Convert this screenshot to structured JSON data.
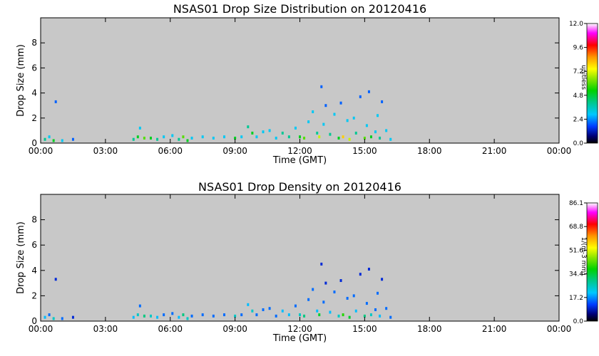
{
  "chart_data": [
    {
      "type": "heatmap",
      "title": "NSAS01 Drop Size Distribution  on 20120416",
      "xlabel": "Time (GMT)",
      "ylabel": "Drop Size (mm)",
      "xticks": [
        "00:00",
        "03:00",
        "06:00",
        "09:00",
        "12:00",
        "15:00",
        "18:00",
        "21:00",
        "00:00"
      ],
      "xlim_hours": [
        0,
        24
      ],
      "yticks": [
        "0",
        "2",
        "4",
        "6",
        "8"
      ],
      "ylim": [
        0,
        10
      ],
      "background_color": "#c8c8c8",
      "colorbar": {
        "label": "unitless",
        "ticks": [
          "0.0",
          "2.4",
          "4.8",
          "7.2",
          "9.6",
          "12.0"
        ],
        "range": [
          0,
          12.0
        ]
      },
      "points": [
        [
          0.2,
          0.3,
          4
        ],
        [
          0.4,
          0.5,
          3
        ],
        [
          0.6,
          0.2,
          5
        ],
        [
          0.7,
          3.3,
          2
        ],
        [
          1.0,
          0.2,
          3
        ],
        [
          1.5,
          0.3,
          2
        ],
        [
          4.3,
          0.3,
          4
        ],
        [
          4.5,
          0.5,
          5
        ],
        [
          4.6,
          1.2,
          3
        ],
        [
          4.8,
          0.4,
          6
        ],
        [
          5.1,
          0.4,
          5
        ],
        [
          5.4,
          0.3,
          4
        ],
        [
          5.7,
          0.5,
          3
        ],
        [
          6.1,
          0.6,
          3
        ],
        [
          6.4,
          0.3,
          4
        ],
        [
          6.6,
          0.5,
          6
        ],
        [
          6.8,
          0.2,
          5
        ],
        [
          7.0,
          0.4,
          3
        ],
        [
          7.5,
          0.5,
          3
        ],
        [
          8.0,
          0.4,
          3
        ],
        [
          8.5,
          0.5,
          3
        ],
        [
          9.0,
          0.4,
          5
        ],
        [
          9.3,
          0.5,
          3
        ],
        [
          9.6,
          1.3,
          4
        ],
        [
          9.8,
          0.8,
          5
        ],
        [
          10.0,
          0.5,
          3
        ],
        [
          10.3,
          0.9,
          3
        ],
        [
          10.6,
          1.0,
          3
        ],
        [
          10.9,
          0.4,
          3
        ],
        [
          11.2,
          0.8,
          4
        ],
        [
          11.5,
          0.5,
          4
        ],
        [
          11.8,
          1.2,
          3
        ],
        [
          12.0,
          0.5,
          5
        ],
        [
          12.2,
          0.4,
          6
        ],
        [
          12.4,
          1.7,
          3
        ],
        [
          12.6,
          2.5,
          3
        ],
        [
          12.8,
          0.8,
          4
        ],
        [
          12.9,
          0.5,
          7
        ],
        [
          13.0,
          4.5,
          2
        ],
        [
          13.1,
          1.5,
          3
        ],
        [
          13.2,
          3.0,
          2
        ],
        [
          13.4,
          0.7,
          4
        ],
        [
          13.6,
          2.3,
          3
        ],
        [
          13.8,
          0.4,
          5
        ],
        [
          13.9,
          3.2,
          2
        ],
        [
          14.0,
          0.5,
          8
        ],
        [
          14.2,
          1.8,
          3
        ],
        [
          14.3,
          0.3,
          7
        ],
        [
          14.5,
          2.0,
          3
        ],
        [
          14.6,
          0.8,
          4
        ],
        [
          14.8,
          3.7,
          2
        ],
        [
          15.0,
          0.4,
          6
        ],
        [
          15.1,
          1.4,
          3
        ],
        [
          15.2,
          4.1,
          2
        ],
        [
          15.3,
          0.5,
          5
        ],
        [
          15.5,
          0.9,
          3
        ],
        [
          15.6,
          2.2,
          3
        ],
        [
          15.7,
          0.4,
          4
        ],
        [
          15.8,
          3.3,
          2
        ],
        [
          16.0,
          1.0,
          3
        ],
        [
          16.2,
          0.3,
          3
        ]
      ]
    },
    {
      "type": "heatmap",
      "title": "NSAS01 Drop Density  on 20120416",
      "xlabel": "Time (GMT)",
      "ylabel": "Drop Size (mm)",
      "xticks": [
        "00:00",
        "03:00",
        "06:00",
        "09:00",
        "12:00",
        "15:00",
        "18:00",
        "21:00",
        "00:00"
      ],
      "xlim_hours": [
        0,
        24
      ],
      "yticks": [
        "0",
        "2",
        "4",
        "6",
        "8"
      ],
      "ylim": [
        0,
        10
      ],
      "background_color": "#c8c8c8",
      "colorbar": {
        "label": "1/(m-3 mm)",
        "ticks": [
          "0.0",
          "17.2",
          "34.4",
          "51.6",
          "68.8",
          "86.1"
        ],
        "range": [
          0,
          86.1
        ]
      },
      "points": [
        [
          0.2,
          0.3,
          20
        ],
        [
          0.4,
          0.5,
          15
        ],
        [
          0.6,
          0.2,
          25
        ],
        [
          0.7,
          3.3,
          10
        ],
        [
          1.0,
          0.2,
          15
        ],
        [
          1.5,
          0.3,
          10
        ],
        [
          4.3,
          0.3,
          20
        ],
        [
          4.5,
          0.5,
          25
        ],
        [
          4.6,
          1.2,
          15
        ],
        [
          4.8,
          0.4,
          30
        ],
        [
          5.1,
          0.4,
          25
        ],
        [
          5.4,
          0.3,
          20
        ],
        [
          5.7,
          0.5,
          15
        ],
        [
          6.1,
          0.6,
          15
        ],
        [
          6.4,
          0.3,
          20
        ],
        [
          6.6,
          0.5,
          30
        ],
        [
          6.8,
          0.2,
          25
        ],
        [
          7.0,
          0.4,
          15
        ],
        [
          7.5,
          0.5,
          15
        ],
        [
          8.0,
          0.4,
          15
        ],
        [
          8.5,
          0.5,
          15
        ],
        [
          9.0,
          0.4,
          25
        ],
        [
          9.3,
          0.5,
          15
        ],
        [
          9.6,
          1.3,
          20
        ],
        [
          9.8,
          0.8,
          25
        ],
        [
          10.0,
          0.5,
          15
        ],
        [
          10.3,
          0.9,
          15
        ],
        [
          10.6,
          1.0,
          15
        ],
        [
          10.9,
          0.4,
          15
        ],
        [
          11.2,
          0.8,
          20
        ],
        [
          11.5,
          0.5,
          20
        ],
        [
          11.8,
          1.2,
          15
        ],
        [
          12.0,
          0.5,
          25
        ],
        [
          12.2,
          0.4,
          30
        ],
        [
          12.4,
          1.7,
          15
        ],
        [
          12.6,
          2.5,
          15
        ],
        [
          12.8,
          0.8,
          20
        ],
        [
          12.9,
          0.5,
          35
        ],
        [
          13.0,
          4.5,
          10
        ],
        [
          13.1,
          1.5,
          15
        ],
        [
          13.2,
          3.0,
          10
        ],
        [
          13.4,
          0.7,
          20
        ],
        [
          13.6,
          2.3,
          15
        ],
        [
          13.8,
          0.4,
          25
        ],
        [
          13.9,
          3.2,
          10
        ],
        [
          14.0,
          0.5,
          40
        ],
        [
          14.2,
          1.8,
          15
        ],
        [
          14.3,
          0.3,
          35
        ],
        [
          14.5,
          2.0,
          15
        ],
        [
          14.6,
          0.8,
          20
        ],
        [
          14.8,
          3.7,
          10
        ],
        [
          15.0,
          0.4,
          30
        ],
        [
          15.1,
          1.4,
          15
        ],
        [
          15.2,
          4.1,
          10
        ],
        [
          15.3,
          0.5,
          25
        ],
        [
          15.5,
          0.9,
          15
        ],
        [
          15.6,
          2.2,
          15
        ],
        [
          15.7,
          0.4,
          20
        ],
        [
          15.8,
          3.3,
          10
        ],
        [
          16.0,
          1.0,
          15
        ],
        [
          16.2,
          0.3,
          15
        ]
      ]
    }
  ]
}
